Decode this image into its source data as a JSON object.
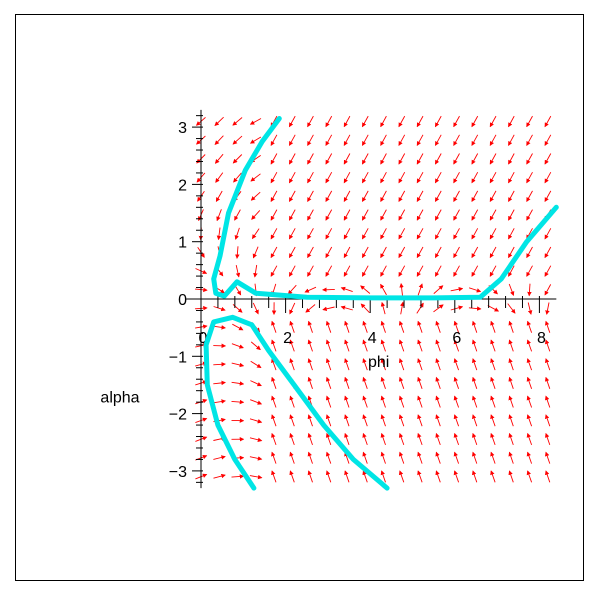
{
  "chart_data": {
    "type": "phase-portrait",
    "xlabel": "phi",
    "ylabel": "alpha",
    "xlim": [
      0,
      8.4
    ],
    "ylim": [
      -3.3,
      3.3
    ],
    "x_ticks": [
      0,
      2,
      4,
      6,
      8
    ],
    "y_ticks": [
      -3,
      -2,
      -1,
      0,
      1,
      2,
      3
    ],
    "x_tick_labels": [
      "0",
      "2",
      "4",
      "6",
      "8"
    ],
    "y_tick_labels": [
      "-3",
      "-2",
      "-1",
      "0",
      "1",
      "2",
      "3"
    ],
    "grid": false,
    "arrow_color": "#ff0000",
    "trajectory_color": "#00e5e5",
    "vector_field": {
      "x_range": [
        0,
        8.2
      ],
      "y_range": [
        -3.1,
        3.1
      ],
      "cols": 20,
      "rows": 20
    },
    "trajectories": [
      [
        [
          1.85,
          3.15
        ],
        [
          1.45,
          2.75
        ],
        [
          1.05,
          2.25
        ],
        [
          0.65,
          1.5
        ],
        [
          0.45,
          0.75
        ],
        [
          0.3,
          0.35
        ],
        [
          0.35,
          0.1
        ],
        [
          0.55,
          0.05
        ],
        [
          0.85,
          0.3
        ],
        [
          1.3,
          0.1
        ],
        [
          2.5,
          0.03
        ],
        [
          4.0,
          0.02
        ],
        [
          5.5,
          0.02
        ],
        [
          6.6,
          0.03
        ],
        [
          7.1,
          0.35
        ],
        [
          7.7,
          1.0
        ],
        [
          8.4,
          1.6
        ]
      ],
      [
        [
          1.25,
          -3.3
        ],
        [
          0.8,
          -2.8
        ],
        [
          0.4,
          -2.2
        ],
        [
          0.15,
          -1.5
        ],
        [
          0.12,
          -0.8
        ],
        [
          0.3,
          -0.4
        ],
        [
          0.75,
          -0.32
        ],
        [
          1.2,
          -0.45
        ],
        [
          1.6,
          -0.9
        ],
        [
          2.2,
          -1.5
        ],
        [
          2.9,
          -2.2
        ],
        [
          3.6,
          -2.8
        ],
        [
          4.4,
          -3.3
        ]
      ]
    ]
  }
}
